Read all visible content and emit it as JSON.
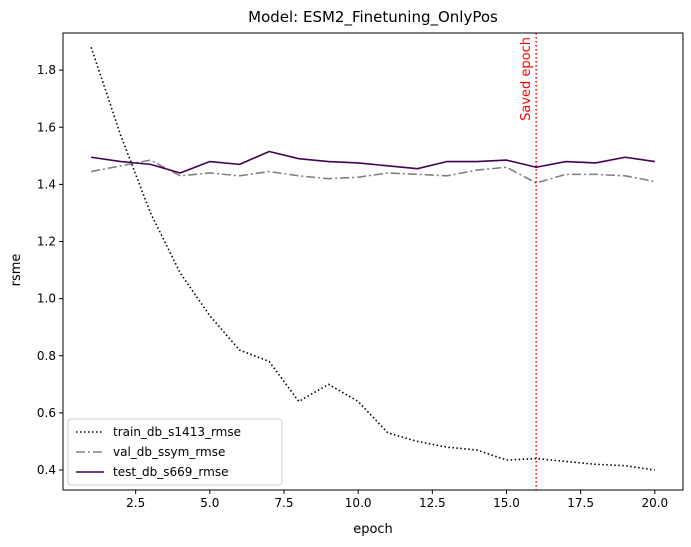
{
  "chart_data": {
    "type": "line",
    "title": "Model: ESM2_Finetuning_OnlyPos",
    "xlabel": "epoch",
    "ylabel": "rsme",
    "xlim": [
      0.05,
      20.95
    ],
    "ylim": [
      0.33,
      1.93
    ],
    "xticks": [
      2.5,
      5.0,
      7.5,
      10.0,
      12.5,
      15.0,
      17.5,
      20.0
    ],
    "xtick_labels": [
      "2.5",
      "5.0",
      "7.5",
      "10.0",
      "12.5",
      "15.0",
      "17.5",
      "20.0"
    ],
    "yticks": [
      0.4,
      0.6,
      0.8,
      1.0,
      1.2,
      1.4,
      1.6,
      1.8
    ],
    "ytick_labels": [
      "0.4",
      "0.6",
      "0.8",
      "1.0",
      "1.2",
      "1.4",
      "1.6",
      "1.8"
    ],
    "grid": false,
    "legend_position": "lower-left",
    "x": [
      1,
      2,
      3,
      4,
      5,
      6,
      7,
      8,
      9,
      10,
      11,
      12,
      13,
      14,
      15,
      16,
      17,
      18,
      19,
      20
    ],
    "series": [
      {
        "name": "train_db_s1413_rmse",
        "color": "#000000",
        "style": "dotted",
        "values": [
          1.88,
          1.57,
          1.3,
          1.09,
          0.94,
          0.82,
          0.78,
          0.64,
          0.7,
          0.64,
          0.53,
          0.5,
          0.48,
          0.47,
          0.435,
          0.44,
          0.43,
          0.42,
          0.415,
          0.4
        ]
      },
      {
        "name": "val_db_ssym_rmse",
        "color": "#808080",
        "style": "dashdot",
        "values": [
          1.445,
          1.465,
          1.485,
          1.43,
          1.44,
          1.43,
          1.445,
          1.43,
          1.42,
          1.425,
          1.44,
          1.435,
          1.43,
          1.45,
          1.46,
          1.405,
          1.435,
          1.435,
          1.43,
          1.41
        ]
      },
      {
        "name": "test_db_s669_rmse",
        "color": "#440154",
        "style": "solid",
        "values": [
          1.495,
          1.48,
          1.47,
          1.44,
          1.48,
          1.47,
          1.515,
          1.49,
          1.48,
          1.475,
          1.465,
          1.455,
          1.48,
          1.48,
          1.485,
          1.46,
          1.48,
          1.475,
          1.495,
          1.48
        ]
      }
    ],
    "annotations": [
      {
        "type": "vline",
        "x": 16,
        "color": "#ff0000",
        "style": "dotted",
        "label": "Saved epoch"
      }
    ]
  }
}
